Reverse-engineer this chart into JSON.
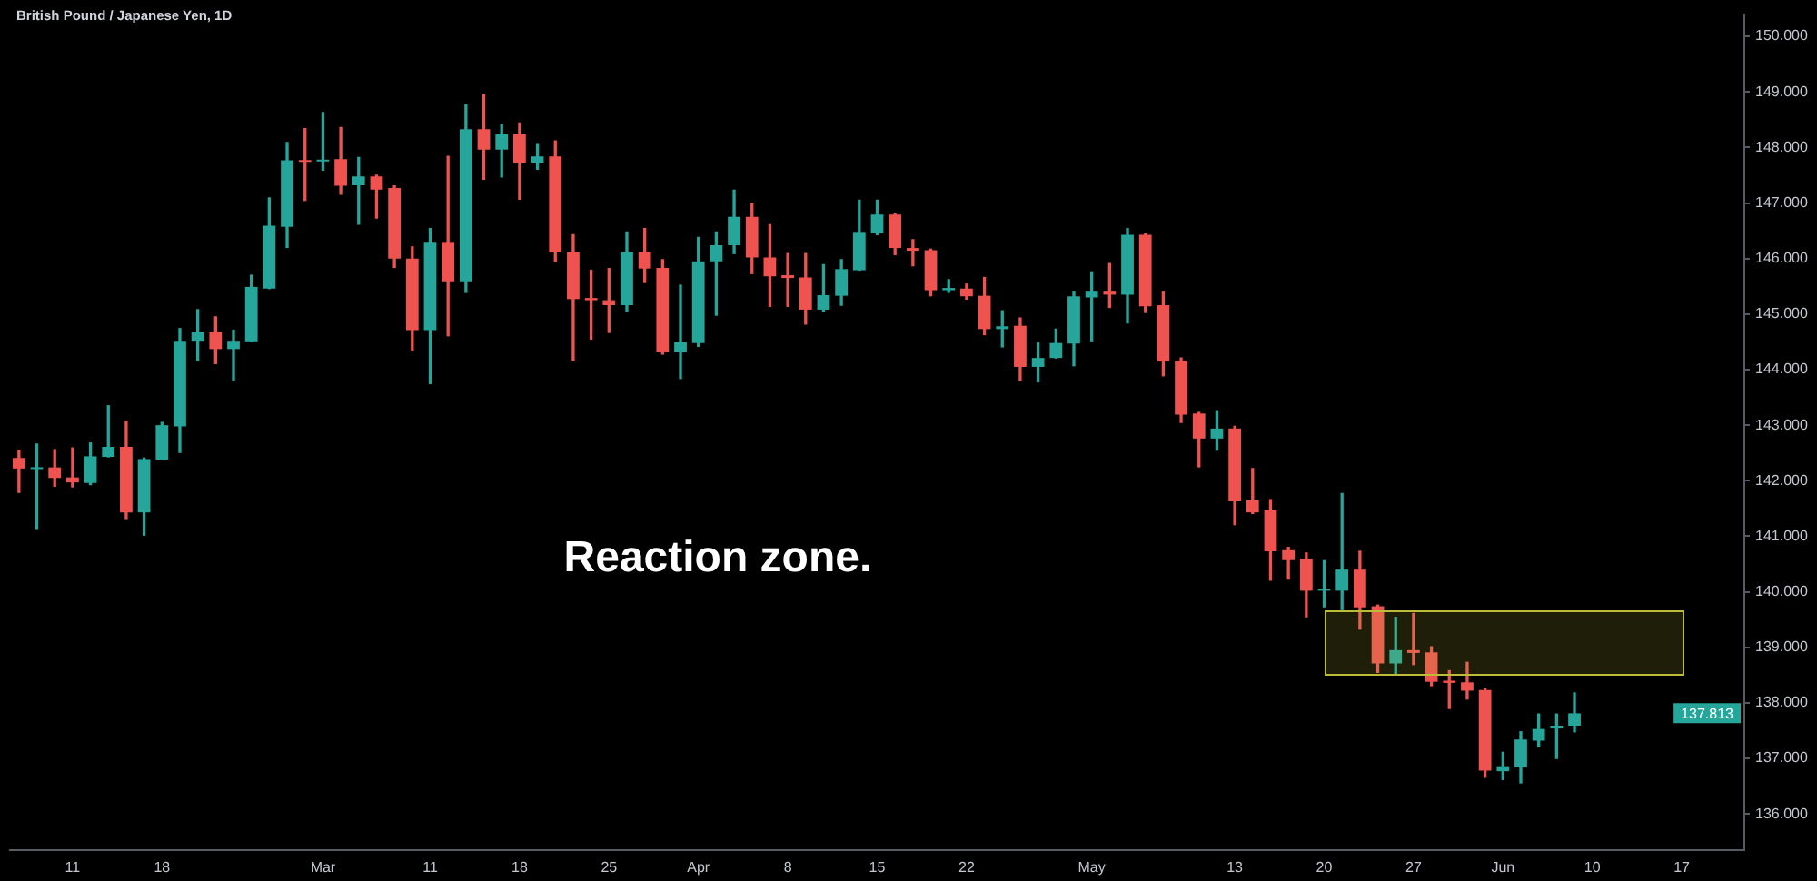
{
  "chart_data": {
    "type": "candlestick",
    "title": "British Pound / Japanese Yen, 1D",
    "categories": [
      null,
      null,
      null,
      "11",
      null,
      null,
      null,
      null,
      "18",
      null,
      null,
      null,
      null,
      null,
      null,
      null,
      null,
      "Mar",
      null,
      null,
      null,
      null,
      null,
      "11",
      null,
      null,
      null,
      null,
      "18",
      null,
      null,
      null,
      null,
      "25",
      null,
      null,
      null,
      null,
      "Apr",
      null,
      null,
      null,
      null,
      "8",
      null,
      null,
      null,
      null,
      "15",
      null,
      null,
      null,
      null,
      "22",
      null,
      null,
      null,
      null,
      null,
      null,
      "May",
      null,
      null,
      null,
      null,
      null,
      null,
      null,
      "13",
      null,
      null,
      null,
      null,
      "20",
      null,
      null,
      null,
      null,
      "27",
      null,
      null,
      null,
      null,
      "Jun",
      null,
      null,
      null,
      null,
      "10",
      null,
      null,
      null,
      null,
      "17",
      null,
      null,
      null
    ],
    "ohlc": [
      [
        142.41,
        142.55,
        141.79,
        142.22
      ],
      [
        142.21,
        142.66,
        141.14,
        142.24
      ],
      [
        142.24,
        142.56,
        141.9,
        142.05
      ],
      [
        142.06,
        142.59,
        141.89,
        141.97
      ],
      [
        141.96,
        142.68,
        141.93,
        142.44
      ],
      [
        142.43,
        143.35,
        142.43,
        142.61
      ],
      [
        142.61,
        143.07,
        141.32,
        141.43
      ],
      [
        141.43,
        142.41,
        141.02,
        142.39
      ],
      [
        142.38,
        143.05,
        142.38,
        143.0
      ],
      [
        142.98,
        144.74,
        142.51,
        144.52
      ],
      [
        144.52,
        145.08,
        144.16,
        144.68
      ],
      [
        144.68,
        144.95,
        144.11,
        144.37
      ],
      [
        144.37,
        144.71,
        143.81,
        144.52
      ],
      [
        144.51,
        145.7,
        144.51,
        145.49
      ],
      [
        145.46,
        147.09,
        145.46,
        146.59
      ],
      [
        146.57,
        148.09,
        146.2,
        147.77
      ],
      [
        147.77,
        148.34,
        147.05,
        147.74
      ],
      [
        147.75,
        148.63,
        147.59,
        147.78
      ],
      [
        147.79,
        148.36,
        147.16,
        147.31
      ],
      [
        147.32,
        147.82,
        146.62,
        147.48
      ],
      [
        147.48,
        147.5,
        146.73,
        147.24
      ],
      [
        147.27,
        147.31,
        145.84,
        146.0
      ],
      [
        146.0,
        146.21,
        144.35,
        144.71
      ],
      [
        144.71,
        146.54,
        143.75,
        146.3
      ],
      [
        146.3,
        147.84,
        144.61,
        145.59
      ],
      [
        145.59,
        148.77,
        145.39,
        148.33
      ],
      [
        148.33,
        148.95,
        147.43,
        147.96
      ],
      [
        147.96,
        148.41,
        147.47,
        148.24
      ],
      [
        148.24,
        148.44,
        147.07,
        147.72
      ],
      [
        147.72,
        148.07,
        147.61,
        147.84
      ],
      [
        147.84,
        148.12,
        145.95,
        146.11
      ],
      [
        146.11,
        146.43,
        144.16,
        145.27
      ],
      [
        145.29,
        145.79,
        144.55,
        145.25
      ],
      [
        145.25,
        145.82,
        144.67,
        145.16
      ],
      [
        145.16,
        146.48,
        145.04,
        146.11
      ],
      [
        146.11,
        146.54,
        145.57,
        145.82
      ],
      [
        145.83,
        145.98,
        144.28,
        144.31
      ],
      [
        144.31,
        145.52,
        143.84,
        144.5
      ],
      [
        144.48,
        146.38,
        144.42,
        145.95
      ],
      [
        145.95,
        146.48,
        144.98,
        146.24
      ],
      [
        146.24,
        147.23,
        146.09,
        146.75
      ],
      [
        146.75,
        146.99,
        145.73,
        146.02
      ],
      [
        146.02,
        146.61,
        145.14,
        145.68
      ],
      [
        145.7,
        146.09,
        145.14,
        145.65
      ],
      [
        145.66,
        146.09,
        144.82,
        145.08
      ],
      [
        145.08,
        145.89,
        145.04,
        145.34
      ],
      [
        145.33,
        145.98,
        145.16,
        145.81
      ],
      [
        145.79,
        147.05,
        145.79,
        146.48
      ],
      [
        146.46,
        147.05,
        146.43,
        146.79
      ],
      [
        146.79,
        146.8,
        146.07,
        146.19
      ],
      [
        146.19,
        146.34,
        145.87,
        146.14
      ],
      [
        146.15,
        146.17,
        145.33,
        145.43
      ],
      [
        145.43,
        145.62,
        145.39,
        145.47
      ],
      [
        145.46,
        145.54,
        145.27,
        145.32
      ],
      [
        145.33,
        145.66,
        144.63,
        144.73
      ],
      [
        144.73,
        145.06,
        144.41,
        144.78
      ],
      [
        144.79,
        144.93,
        143.8,
        144.05
      ],
      [
        144.05,
        144.48,
        143.78,
        144.21
      ],
      [
        144.21,
        144.73,
        144.21,
        144.48
      ],
      [
        144.47,
        145.41,
        144.07,
        145.32
      ],
      [
        145.3,
        145.76,
        144.52,
        145.42
      ],
      [
        145.42,
        145.91,
        145.12,
        145.35
      ],
      [
        145.35,
        146.54,
        144.84,
        146.43
      ],
      [
        146.43,
        146.45,
        145.03,
        145.14
      ],
      [
        145.16,
        145.41,
        143.89,
        144.15
      ],
      [
        144.16,
        144.21,
        143.05,
        143.19
      ],
      [
        143.21,
        143.23,
        142.25,
        142.76
      ],
      [
        142.76,
        143.26,
        142.55,
        142.94
      ],
      [
        142.94,
        142.98,
        141.21,
        141.63
      ],
      [
        141.65,
        142.22,
        141.41,
        141.43
      ],
      [
        141.47,
        141.66,
        140.21,
        140.73
      ],
      [
        140.75,
        140.8,
        140.23,
        140.57
      ],
      [
        140.59,
        140.7,
        139.55,
        140.02
      ],
      [
        140.02,
        140.56,
        139.73,
        140.05
      ],
      [
        140.02,
        141.77,
        139.68,
        140.4
      ],
      [
        140.4,
        140.73,
        139.33,
        139.72
      ],
      [
        139.74,
        139.76,
        138.55,
        138.71
      ],
      [
        138.71,
        139.54,
        138.53,
        138.95
      ],
      [
        138.95,
        139.61,
        138.69,
        138.9
      ],
      [
        138.91,
        139.01,
        138.31,
        138.38
      ],
      [
        138.4,
        138.58,
        137.9,
        138.36
      ],
      [
        138.37,
        138.73,
        138.07,
        138.22
      ],
      [
        138.23,
        138.25,
        136.66,
        136.78
      ],
      [
        136.77,
        137.11,
        136.62,
        136.86
      ],
      [
        136.84,
        137.48,
        136.56,
        137.34
      ],
      [
        137.32,
        137.8,
        137.21,
        137.53
      ],
      [
        137.54,
        137.8,
        137.0,
        137.59
      ],
      [
        137.59,
        138.18,
        137.48,
        137.813
      ],
      null,
      null,
      null,
      null,
      null,
      null,
      null,
      null,
      null
    ],
    "colors": [
      "#ef5350",
      "#26a69a",
      "#ef5350",
      "#ef5350",
      "#26a69a",
      "#26a69a",
      "#ef5350",
      "#26a69a",
      "#26a69a",
      "#26a69a",
      "#26a69a",
      "#ef5350",
      "#26a69a",
      "#26a69a",
      "#26a69a",
      "#26a69a",
      "#ef5350",
      "#26a69a",
      "#ef5350",
      "#26a69a",
      "#ef5350",
      "#ef5350",
      "#ef5350",
      "#26a69a",
      "#ef5350",
      "#26a69a",
      "#ef5350",
      "#26a69a",
      "#ef5350",
      "#26a69a",
      "#ef5350",
      "#ef5350",
      "#ef5350",
      "#ef5350",
      "#26a69a",
      "#ef5350",
      "#ef5350",
      "#26a69a",
      "#26a69a",
      "#26a69a",
      "#26a69a",
      "#ef5350",
      "#ef5350",
      "#ef5350",
      "#ef5350",
      "#26a69a",
      "#26a69a",
      "#26a69a",
      "#26a69a",
      "#ef5350",
      "#ef5350",
      "#ef5350",
      "#26a69a",
      "#ef5350",
      "#ef5350",
      "#26a69a",
      "#ef5350",
      "#26a69a",
      "#26a69a",
      "#26a69a",
      "#26a69a",
      "#ef5350",
      "#26a69a",
      "#ef5350",
      "#ef5350",
      "#ef5350",
      "#ef5350",
      "#26a69a",
      "#ef5350",
      "#ef5350",
      "#ef5350",
      "#ef5350",
      "#ef5350",
      "#26a69a",
      "#26a69a",
      "#ef5350",
      "#ef5350",
      "#26a69a",
      "#ef5350",
      "#ef5350",
      "#ef5350",
      "#ef5350",
      "#ef5350",
      "#26a69a",
      "#26a69a",
      "#26a69a",
      "#26a69a",
      "#26a69a",
      null,
      null,
      null,
      null,
      null,
      null,
      null,
      null,
      null
    ],
    "ylim": [
      135.35,
      150.4
    ],
    "yticks": [
      {
        "value": 136,
        "label": "136.000"
      },
      {
        "value": 137,
        "label": "137.000"
      },
      {
        "value": 138,
        "label": "138.000"
      },
      {
        "value": 139,
        "label": "139.000"
      },
      {
        "value": 140,
        "label": "140.000"
      },
      {
        "value": 141,
        "label": "141.000"
      },
      {
        "value": 142,
        "label": "142.000"
      },
      {
        "value": 143,
        "label": "143.000"
      },
      {
        "value": 144,
        "label": "144.000"
      },
      {
        "value": 145,
        "label": "145.000"
      },
      {
        "value": 146,
        "label": "146.000"
      },
      {
        "value": 147,
        "label": "147.000"
      },
      {
        "value": 148,
        "label": "148.000"
      },
      {
        "value": 149,
        "label": "149.000"
      },
      {
        "value": 150,
        "label": "150.000"
      }
    ],
    "bands": [
      {
        "axis": "y",
        "from": 138.5,
        "to": 139.66,
        "color": "#bcbc3a"
      }
    ],
    "annotations": [
      "Reaction zone.",
      "137.813"
    ]
  }
}
